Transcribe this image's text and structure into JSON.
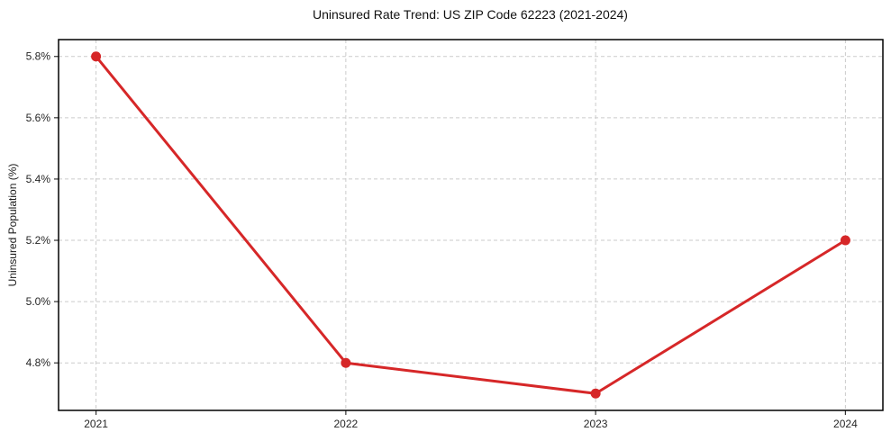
{
  "chart_data": {
    "type": "line",
    "title": "Uninsured Rate Trend: US ZIP Code 62223 (2021-2024)",
    "xlabel": "",
    "ylabel": "Uninsured Population (%)",
    "x": [
      2021,
      2022,
      2023,
      2024
    ],
    "values": [
      5.8,
      4.8,
      4.7,
      5.2
    ],
    "xtick_labels": [
      "2021",
      "2022",
      "2023",
      "2024"
    ],
    "ytick_values": [
      4.8,
      5.0,
      5.2,
      5.4,
      5.6,
      5.8
    ],
    "ytick_labels": [
      "4.8%",
      "5.0%",
      "5.2%",
      "5.4%",
      "5.6%",
      "5.8%"
    ],
    "xlim": [
      2020.85,
      2024.15
    ],
    "ylim": [
      4.645,
      5.855
    ],
    "grid": true,
    "grid_style": "dashed",
    "legend": "none",
    "line_color": "#d62728",
    "marker": "circle",
    "grid_color": "#cbcbcb",
    "spine_color": "#000000",
    "background": "#ffffff"
  }
}
